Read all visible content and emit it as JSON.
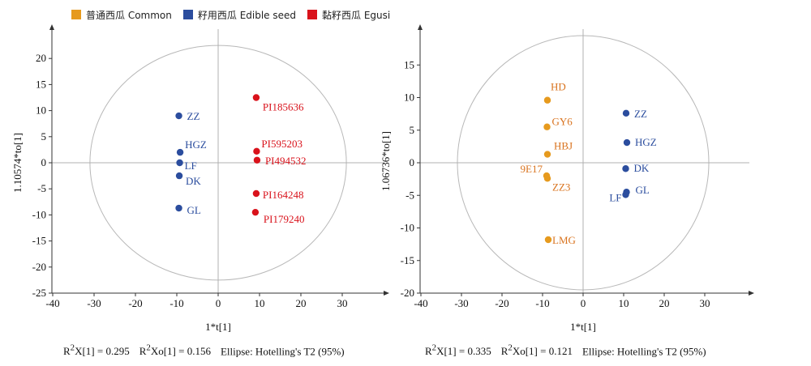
{
  "legend": [
    {
      "label": "普通西瓜 Common",
      "color": "#E69A1E"
    },
    {
      "label": "籽用西瓜 Edible seed",
      "color": "#2B4D9E"
    },
    {
      "label": "黏籽西瓜 Egusi",
      "color": "#D9121B"
    }
  ],
  "chart_data": [
    {
      "type": "scatter",
      "xlabel": "1*t[1]",
      "ylabel": "1.10574*to[1]",
      "xlim": [
        -40,
        40
      ],
      "ylim": [
        -25,
        25
      ],
      "xticks": [
        -40,
        -30,
        -20,
        -10,
        0,
        10,
        20,
        30
      ],
      "yticks": [
        -25,
        -20,
        -15,
        -10,
        -5,
        0,
        5,
        10,
        15,
        20
      ],
      "ellipse": {
        "rx": 31,
        "ry": 22.5
      },
      "caption": {
        "r2x": "X[1] = 0.295",
        "r2xo": "Xo[1] = 0.156",
        "ellipse": "Ellipse: Hotelling's T2 (95%)"
      },
      "points": [
        {
          "label": "ZZ",
          "x": -9.5,
          "y": 9.0,
          "group": 1
        },
        {
          "label": "HGZ",
          "x": -9.2,
          "y": 2.0,
          "group": 1
        },
        {
          "label": "LF",
          "x": -9.3,
          "y": 0.0,
          "group": 1
        },
        {
          "label": "DK",
          "x": -9.4,
          "y": -2.5,
          "group": 1
        },
        {
          "label": "GL",
          "x": -9.5,
          "y": -8.7,
          "group": 1
        },
        {
          "label": "PI185636",
          "x": 9.2,
          "y": 12.5,
          "group": 2
        },
        {
          "label": "PI595203",
          "x": 9.3,
          "y": 2.2,
          "group": 2
        },
        {
          "label": "PI494532",
          "x": 9.4,
          "y": 0.5,
          "group": 2
        },
        {
          "label": "PI164248",
          "x": 9.2,
          "y": -5.9,
          "group": 2
        },
        {
          "label": "PI179240",
          "x": 9.0,
          "y": -9.5,
          "group": 2
        }
      ]
    },
    {
      "type": "scatter",
      "xlabel": "1*t[1]",
      "ylabel": "1.06736*to[1]",
      "xlim": [
        -40,
        40
      ],
      "ylim": [
        -20,
        20
      ],
      "xticks": [
        -40,
        -30,
        -20,
        -10,
        0,
        10,
        20,
        30
      ],
      "yticks": [
        -20,
        -15,
        -10,
        -5,
        0,
        5,
        10,
        15
      ],
      "ellipse": {
        "rx": 31,
        "ry": 19.5
      },
      "caption": {
        "r2x": "X[1] = 0.335",
        "r2xo": "Xo[1] = 0.121",
        "ellipse": "Ellipse: Hotelling's T2 (95%)"
      },
      "points": [
        {
          "label": "HD",
          "x": -8.8,
          "y": 9.6,
          "group": 0
        },
        {
          "label": "GY6",
          "x": -8.9,
          "y": 5.5,
          "group": 0
        },
        {
          "label": "HBJ",
          "x": -8.8,
          "y": 1.3,
          "group": 0
        },
        {
          "label": "9E17",
          "x": -9.0,
          "y": -2.0,
          "group": 0
        },
        {
          "label": "ZZ3",
          "x": -8.8,
          "y": -2.4,
          "group": 0
        },
        {
          "label": "LMG",
          "x": -8.6,
          "y": -11.8,
          "group": 0
        },
        {
          "label": "ZZ",
          "x": 10.6,
          "y": 7.6,
          "group": 1
        },
        {
          "label": "HGZ",
          "x": 10.8,
          "y": 3.1,
          "group": 1
        },
        {
          "label": "DK",
          "x": 10.5,
          "y": -0.9,
          "group": 1
        },
        {
          "label": "GL",
          "x": 10.7,
          "y": -4.5,
          "group": 1
        },
        {
          "label": "LF",
          "x": 10.5,
          "y": -4.9,
          "group": 1
        }
      ]
    }
  ]
}
